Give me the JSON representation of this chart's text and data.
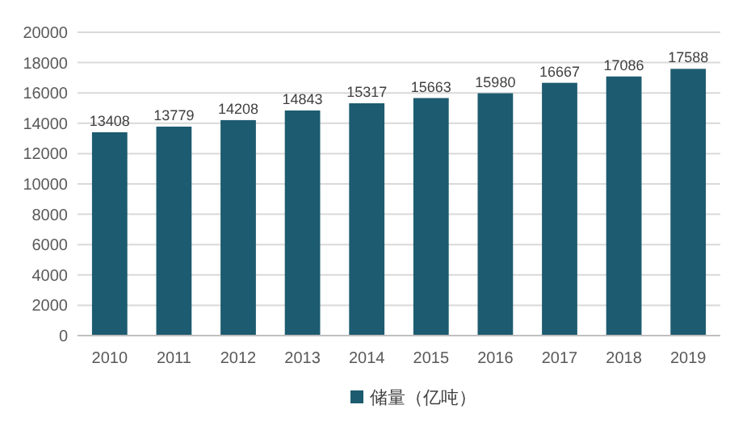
{
  "chart_data": {
    "type": "bar",
    "categories": [
      "2010",
      "2011",
      "2012",
      "2013",
      "2014",
      "2015",
      "2016",
      "2017",
      "2018",
      "2019"
    ],
    "series": [
      {
        "name": "储量（亿吨）",
        "color": "#1d5b70",
        "values": [
          13408,
          13779,
          14208,
          14843,
          15317,
          15663,
          15980,
          16667,
          17086,
          17588
        ]
      }
    ],
    "ylim": [
      0,
      20000
    ],
    "yticks": [
      0,
      2000,
      4000,
      6000,
      8000,
      10000,
      12000,
      14000,
      16000,
      18000,
      20000
    ],
    "grid": "y",
    "legend": "bottom",
    "data_labels": true
  }
}
